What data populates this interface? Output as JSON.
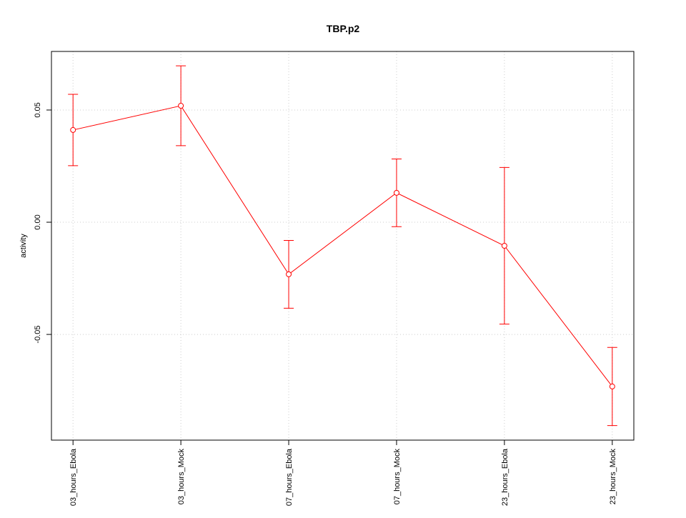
{
  "chart_data": {
    "type": "line",
    "title": "TBP.p2",
    "y_label": "activity",
    "categories": [
      "03_hours_Ebola",
      "03_hours_Mock",
      "07_hours_Ebola",
      "07_hours_Mock",
      "23_hours_Ebola",
      "23_hours_Mock"
    ],
    "values": [
      0.0411,
      0.0519,
      -0.0232,
      0.0131,
      -0.0105,
      -0.0732
    ],
    "errors": [
      0.0159,
      0.0178,
      0.0151,
      0.0151,
      0.0349,
      0.0174
    ],
    "color": "#ff0000",
    "ylim": [
      -0.0971,
      0.0761
    ],
    "yticks": [
      -0.05,
      {
        "value": 0,
        "label": "0.00"
      },
      0.05
    ],
    "grid": true
  }
}
